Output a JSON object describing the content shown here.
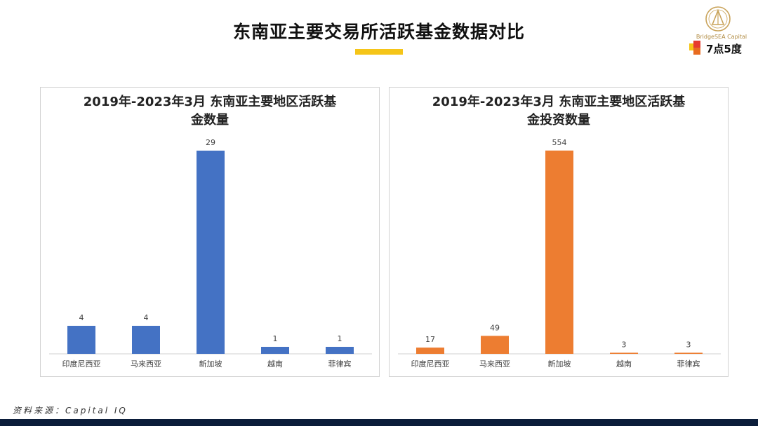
{
  "header": {
    "title": "东南亚主要交易所活跃基金数据对比",
    "logo_name": "BridgeSEA Capital",
    "brand_text": "7点5度"
  },
  "colors": {
    "accent_yellow": "#f5c518",
    "blue": "#4472c4",
    "orange": "#ed7d31",
    "footer": "#0b1d3a"
  },
  "source": "资料来源：Capital IQ",
  "chart_data": [
    {
      "type": "bar",
      "title": "2019年-2023年3月 东南亚主要地区活跃基金数量",
      "title_lines": [
        "2019年-2023年3月 东南亚主要地区活跃基",
        "金数量"
      ],
      "categories": [
        "印度尼西亚",
        "马来西亚",
        "新加坡",
        "越南",
        "菲律宾"
      ],
      "values": [
        4,
        4,
        29,
        1,
        1
      ],
      "color": "#4472c4",
      "ylim": [
        0,
        32
      ]
    },
    {
      "type": "bar",
      "title": "2019年-2023年3月 东南亚主要地区活跃基金投资数量",
      "title_lines": [
        "2019年-2023年3月 东南亚主要地区活跃基",
        "金投资数量"
      ],
      "categories": [
        "印度尼西亚",
        "马来西亚",
        "新加坡",
        "越南",
        "菲律宾"
      ],
      "values": [
        17,
        49,
        554,
        3,
        3
      ],
      "color": "#ed7d31",
      "ylim": [
        0,
        611
      ]
    }
  ]
}
